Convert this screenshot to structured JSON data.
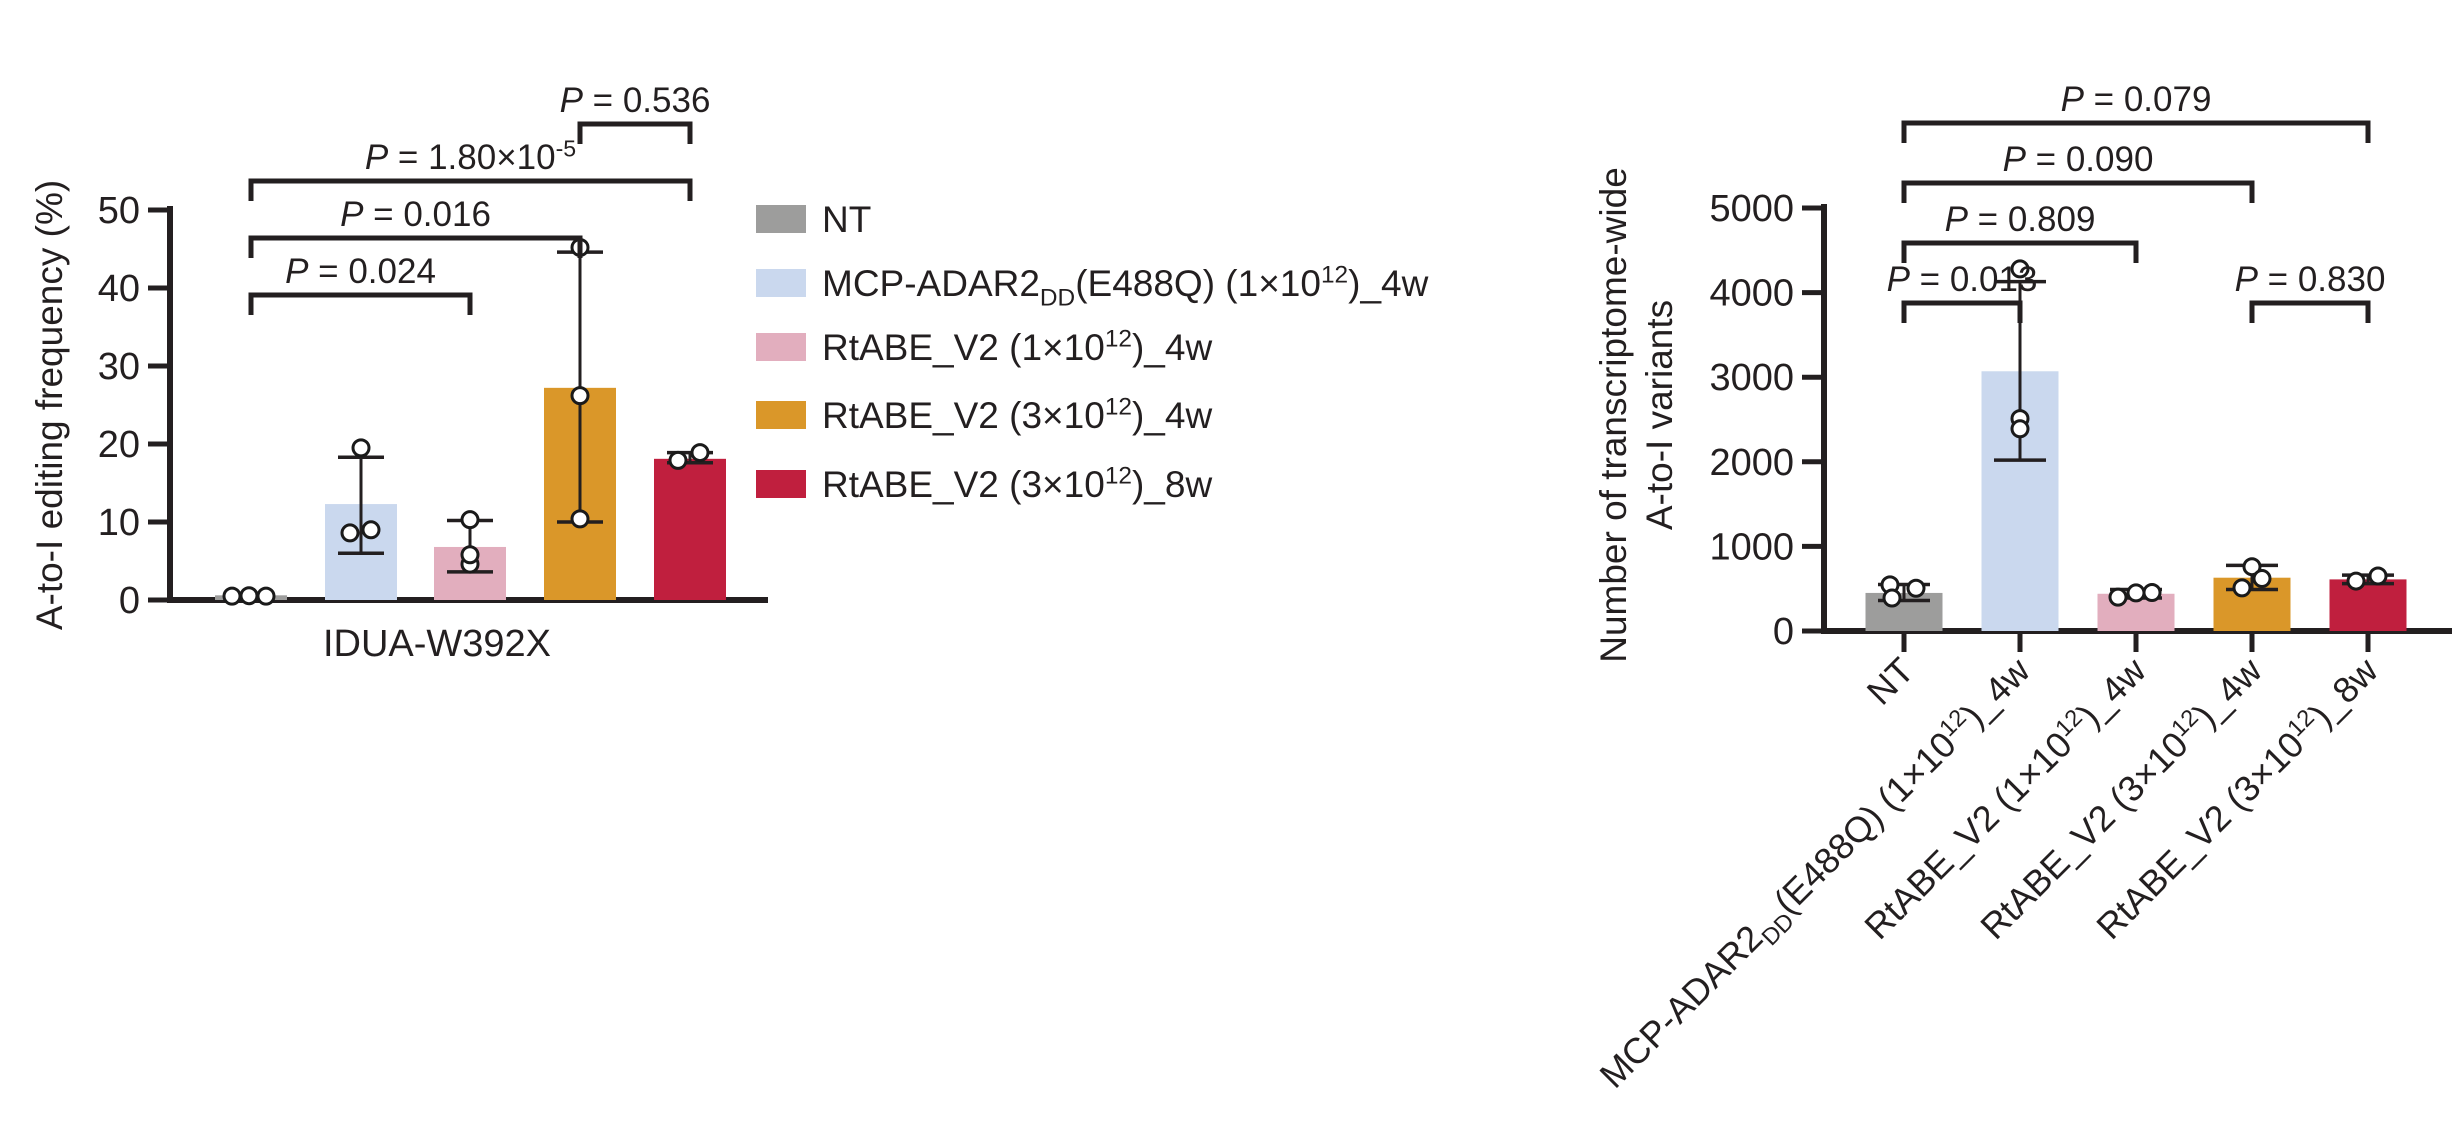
{
  "figure": {
    "background": "#ffffff",
    "text_color": "#231f20",
    "axis_color": "#231f20",
    "point_style": "open-circle"
  },
  "chart_data": [
    {
      "type": "bar",
      "id": "left",
      "title": "",
      "xlabel": "IDUA-W392X",
      "ylabel": "A-to-I editing frequency (%)",
      "ylim": [
        0,
        50
      ],
      "yticks": [
        0,
        10,
        20,
        30,
        40,
        50
      ],
      "grid": false,
      "categories": [
        "NT",
        "MCP-ADAR2~DD~(E488Q) (1×10^12^)_4w",
        "RtABE_V2 (1×10^12^)_4w",
        "RtABE_V2 (3×10^12^)_4w",
        "RtABE_V2 (3×10^12^)_8w"
      ],
      "values": [
        0.6,
        12.3,
        6.8,
        27.2,
        18.1
      ],
      "colors": [
        "#9d9d9c",
        "#cad8ee",
        "#e2aebe",
        "#da9729",
        "#c01f3e"
      ],
      "error_bars": [
        null,
        [
          6.0,
          18.3
        ],
        [
          3.6,
          10.2
        ],
        [
          10.0,
          44.6
        ],
        [
          17.6,
          18.9
        ]
      ],
      "points": [
        [
          [
            -19,
            0.5
          ],
          [
            -2,
            0.55
          ],
          [
            15,
            0.5
          ]
        ],
        [
          [
            -11,
            8.6
          ],
          [
            10,
            9.0
          ],
          [
            0,
            19.5
          ]
        ],
        [
          [
            0,
            4.6
          ],
          [
            0,
            5.8
          ],
          [
            0,
            10.3
          ]
        ],
        [
          [
            0,
            10.4
          ],
          [
            0,
            26.2
          ],
          [
            0,
            45.2
          ]
        ],
        [
          [
            -12,
            17.9
          ],
          [
            10,
            18.9
          ]
        ]
      ],
      "p_annotations": [
        {
          "text": "P = 0.024",
          "from": 0,
          "to": 2,
          "level": 0
        },
        {
          "text": "P = 0.016",
          "from": 0,
          "to": 3,
          "level": 1
        },
        {
          "text": "P = 1.80×10^-5^",
          "from": 0,
          "to": 4,
          "level": 2
        },
        {
          "text": "P = 0.536",
          "from": 3,
          "to": 4,
          "level": 3
        }
      ],
      "legend_position": "right",
      "legend": [
        {
          "label": "NT",
          "color": "#9d9d9c"
        },
        {
          "label": "MCP-ADAR2~DD~(E488Q) (1×10^12^)_4w",
          "color": "#cad8ee"
        },
        {
          "label": "RtABE_V2 (1×10^12^)_4w",
          "color": "#e2aebe"
        },
        {
          "label": "RtABE_V2 (3×10^12^)_4w",
          "color": "#da9729"
        },
        {
          "label": "RtABE_V2 (3×10^12^)_8w",
          "color": "#c01f3e"
        }
      ]
    },
    {
      "type": "bar",
      "id": "right",
      "title": "",
      "xlabel": "",
      "ylabel_lines": [
        "Number of transcriptome-wide",
        "A-to-I variants"
      ],
      "ylim": [
        0,
        5000
      ],
      "yticks": [
        0,
        1000,
        2000,
        3000,
        4000,
        5000
      ],
      "grid": false,
      "categories": [
        "NT",
        "MCP-ADAR2~DD~(E488Q) (1×10^12^)_4w",
        "RtABE_V2 (1×10^12^)_4w",
        "RtABE_V2 (3×10^12^)_4w",
        "RtABE_V2 (3×10^12^)_8w"
      ],
      "values": [
        450,
        3070,
        440,
        630,
        610
      ],
      "colors": [
        "#9d9d9c",
        "#cad8ee",
        "#e2aebe",
        "#da9729",
        "#c01f3e"
      ],
      "error_bars": [
        [
          360,
          550
        ],
        [
          2020,
          4130
        ],
        [
          390,
          490
        ],
        [
          490,
          775
        ],
        [
          560,
          660
        ]
      ],
      "points": [
        [
          [
            -14,
            545
          ],
          [
            12,
            505
          ],
          [
            -12,
            390
          ]
        ],
        [
          [
            0,
            2510
          ],
          [
            0,
            2390
          ],
          [
            0,
            4280
          ]
        ],
        [
          [
            -18,
            400
          ],
          [
            0,
            450
          ],
          [
            16,
            455
          ]
        ],
        [
          [
            0,
            760
          ],
          [
            10,
            620
          ],
          [
            -10,
            510
          ]
        ],
        [
          [
            -12,
            590
          ],
          [
            10,
            650
          ]
        ]
      ],
      "p_annotations": [
        {
          "text": "P = 0.013",
          "from": 0,
          "to": 1,
          "level": 0
        },
        {
          "text": "P = 0.809",
          "from": 0,
          "to": 2,
          "level": 1
        },
        {
          "text": "P = 0.090",
          "from": 0,
          "to": 3,
          "level": 2
        },
        {
          "text": "P = 0.079",
          "from": 0,
          "to": 4,
          "level": 3
        },
        {
          "text": "P = 0.830",
          "from": 3,
          "to": 4,
          "level": 0
        }
      ],
      "legend_position": "none",
      "legend": []
    }
  ]
}
